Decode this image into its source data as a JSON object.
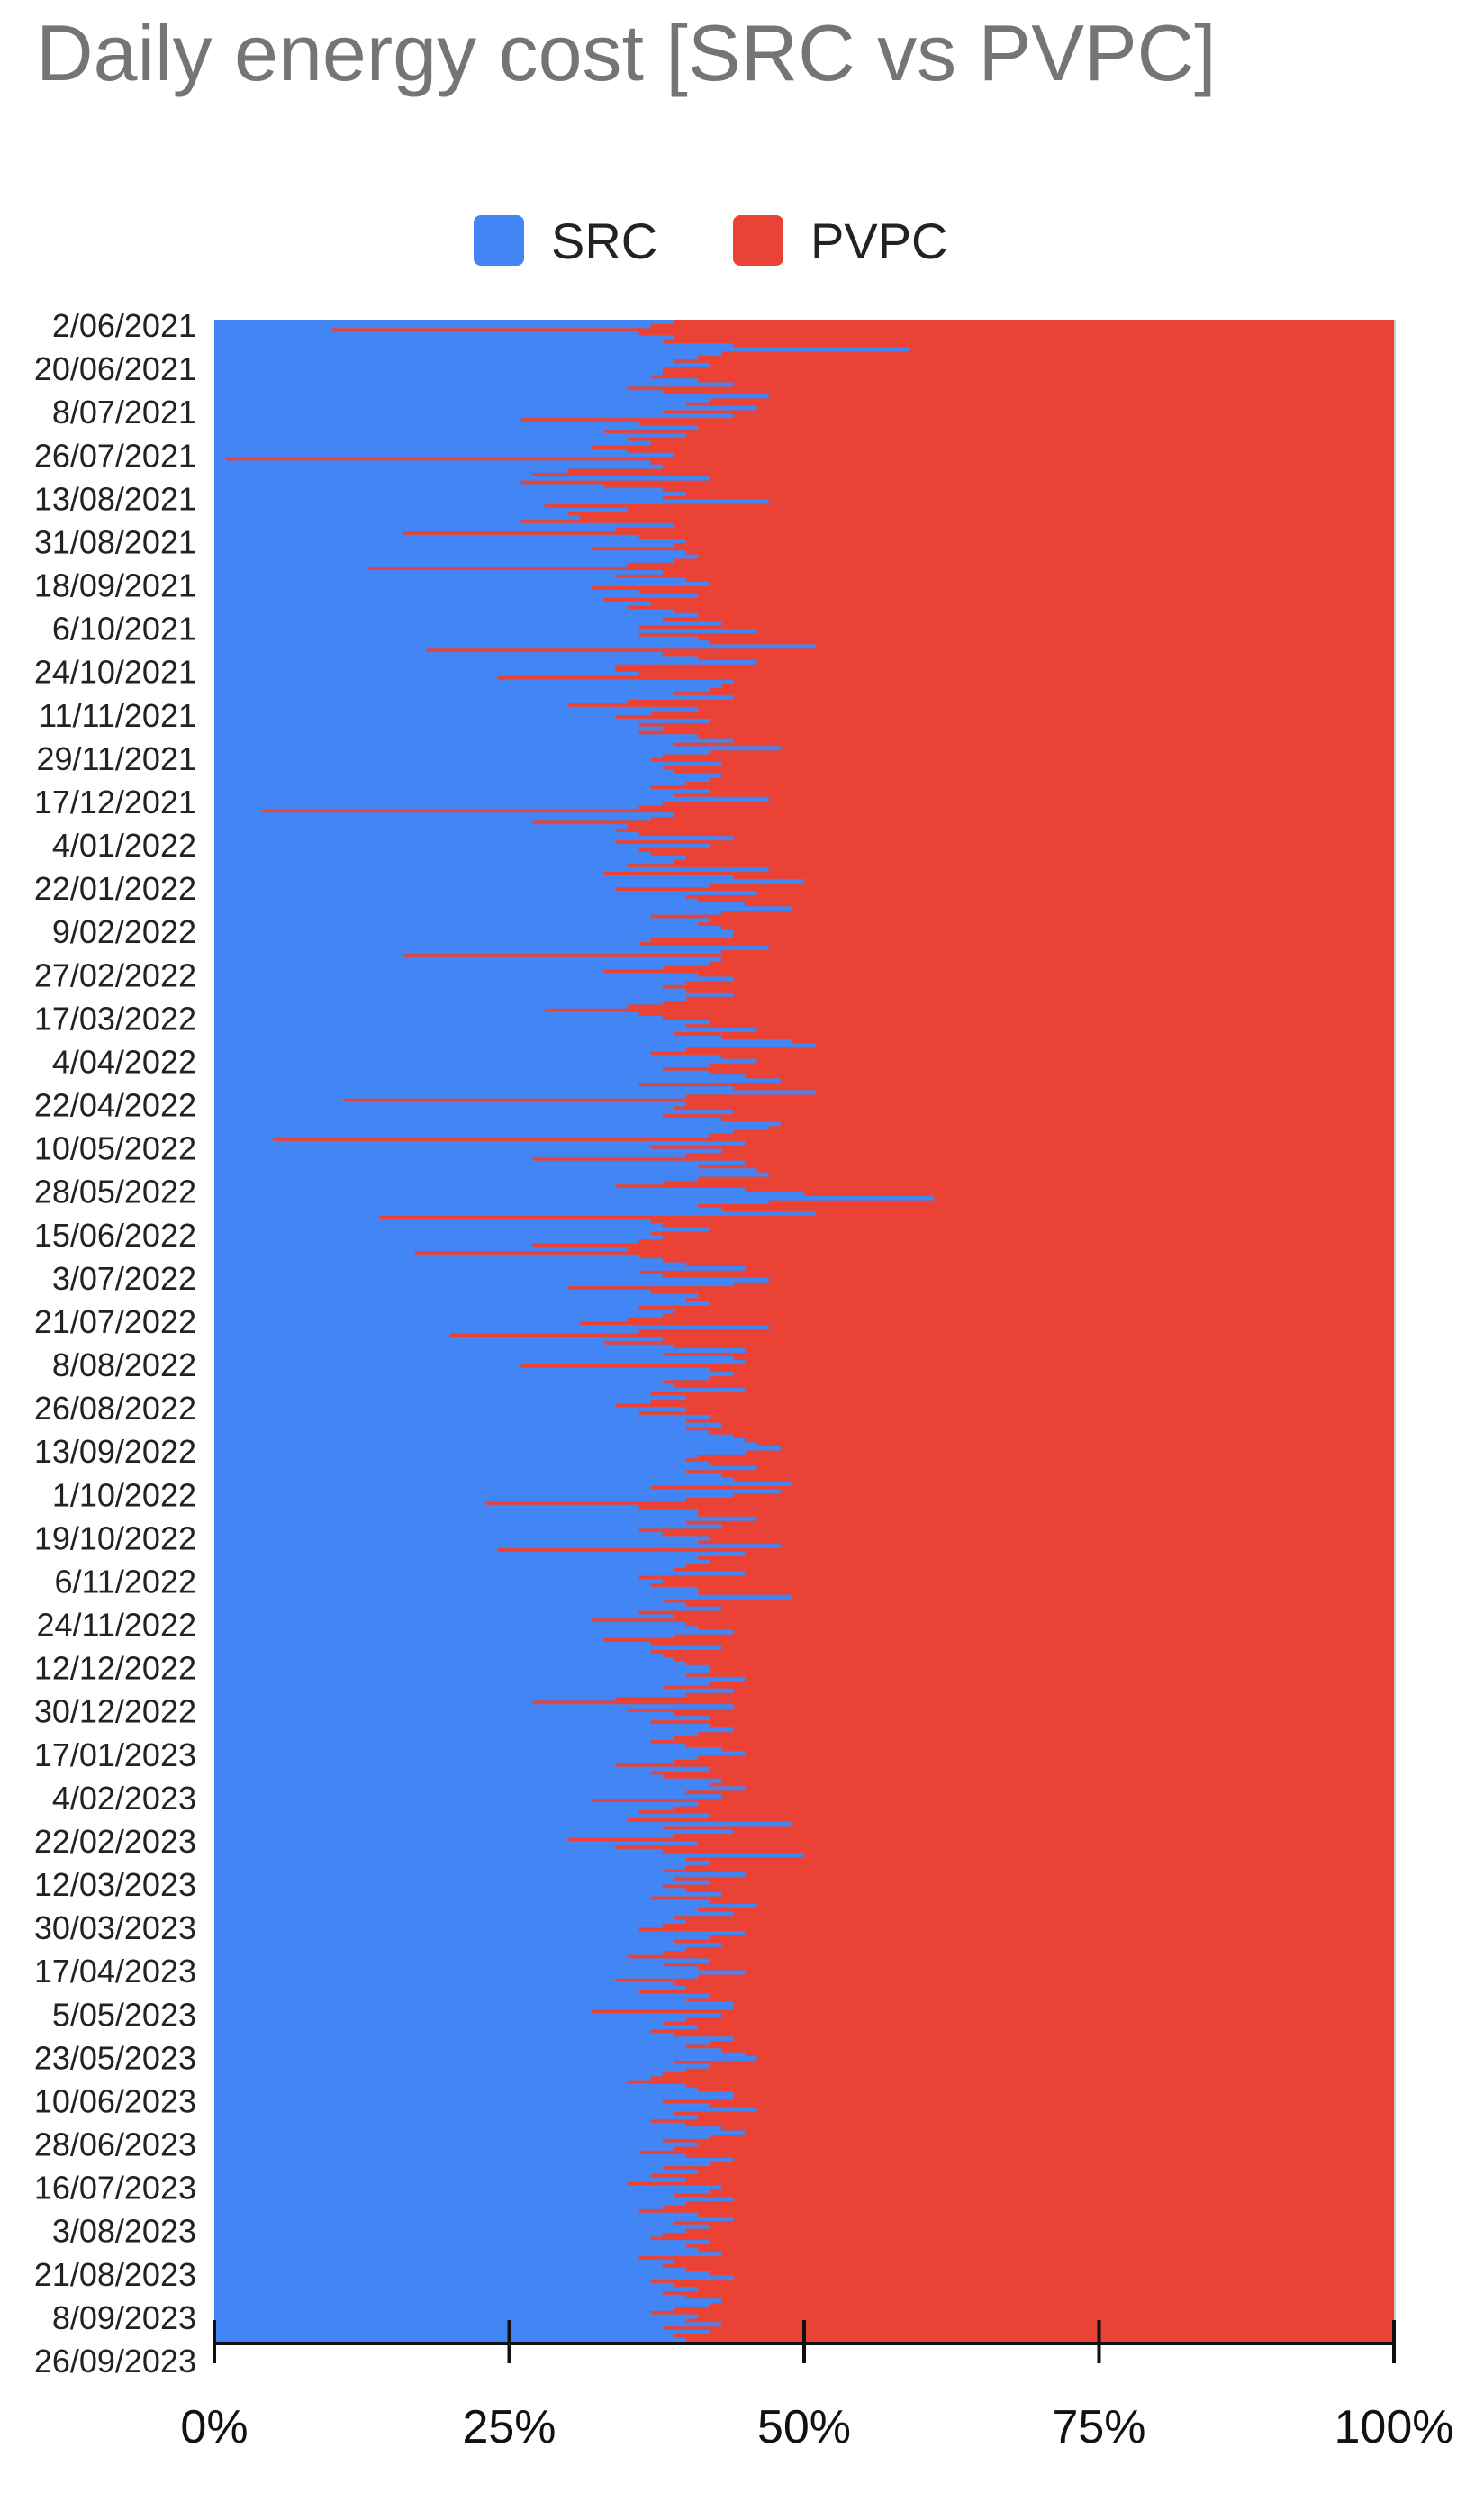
{
  "chart_data": {
    "type": "bar",
    "orientation": "horizontal",
    "stacked": "percent",
    "title": "Daily energy cost [SRC vs PVPC]",
    "legend_position": "top",
    "series": [
      {
        "name": "SRC",
        "color": "#4285f4"
      },
      {
        "name": "PVPC",
        "color": "#ea4335"
      }
    ],
    "x_ticks": [
      "0%",
      "25%",
      "50%",
      "75%",
      "100%"
    ],
    "xlim": [
      0,
      100
    ],
    "grid": false,
    "category_labels": [
      "2/06/2021",
      "20/06/2021",
      "8/07/2021",
      "26/07/2021",
      "13/08/2021",
      "31/08/2021",
      "18/09/2021",
      "6/10/2021",
      "24/10/2021",
      "11/11/2021",
      "29/11/2021",
      "17/12/2021",
      "4/01/2022",
      "22/01/2022",
      "9/02/2022",
      "27/02/2022",
      "17/03/2022",
      "4/04/2022",
      "22/04/2022",
      "10/05/2022",
      "28/05/2022",
      "15/06/2022",
      "3/07/2022",
      "21/07/2022",
      "8/08/2022",
      "26/08/2022",
      "13/09/2022",
      "1/10/2022",
      "19/10/2022",
      "6/11/2022",
      "24/11/2022",
      "12/12/2022",
      "30/12/2022",
      "17/01/2023",
      "4/02/2023",
      "22/02/2023",
      "12/03/2023",
      "30/03/2023",
      "17/04/2023",
      "5/05/2023",
      "23/05/2023",
      "10/06/2023",
      "28/06/2023",
      "16/07/2023",
      "3/08/2023",
      "21/08/2023",
      "8/09/2023",
      "26/09/2023"
    ],
    "src_share_percent_sampled_every_18_days": [
      39,
      38,
      37,
      40,
      40,
      43,
      40,
      41,
      42,
      44,
      45,
      40,
      37,
      42,
      39,
      41,
      44,
      38,
      42,
      45,
      46,
      44,
      41,
      45,
      44,
      43,
      40,
      38,
      40,
      36,
      38,
      42,
      35,
      34,
      36,
      44,
      38,
      35,
      30,
      31,
      35,
      40,
      38,
      39,
      36,
      42,
      40,
      45
    ],
    "src_share_percent_daily": [
      39,
      37,
      10,
      36,
      39,
      38,
      44,
      59,
      43,
      41,
      39,
      42,
      38,
      38,
      37,
      41,
      44,
      35,
      38,
      47,
      42,
      40,
      46,
      38,
      44,
      26,
      36,
      41,
      33,
      40,
      35,
      37,
      32,
      35,
      39,
      1,
      37,
      38,
      30,
      27,
      42,
      26,
      33,
      38,
      40,
      38,
      47,
      28,
      35,
      30,
      31,
      26,
      39,
      34,
      16,
      36,
      40,
      39,
      32,
      40,
      41,
      39,
      35,
      13,
      38,
      34,
      40,
      42,
      32,
      36,
      41,
      33,
      37,
      35,
      39,
      41,
      38,
      43,
      36,
      46,
      36,
      41,
      42,
      51,
      18,
      38,
      41,
      46,
      34,
      34,
      36,
      24,
      44,
      43,
      42,
      39,
      44,
      35,
      30,
      41,
      37,
      34,
      42,
      36,
      38,
      36,
      41,
      44,
      39,
      48,
      42,
      38,
      37,
      43,
      38,
      39,
      43,
      42,
      40,
      37,
      42,
      39,
      47,
      38,
      36,
      4,
      39,
      37,
      27,
      35,
      34,
      36,
      44,
      34,
      42,
      36,
      37,
      40,
      39,
      35,
      47,
      33,
      44,
      50,
      42,
      34,
      46,
      40,
      41,
      45,
      49,
      43,
      37,
      42,
      41,
      43,
      44,
      44,
      37,
      36,
      47,
      43,
      16,
      43,
      42,
      38,
      33,
      41,
      44,
      40,
      38,
      40,
      44,
      40,
      38,
      35,
      28,
      36,
      38,
      42,
      40,
      46,
      39,
      43,
      49,
      51,
      40,
      37,
      43,
      46,
      42,
      38,
      42,
      45,
      48,
      36,
      44,
      51,
      40,
      11,
      40,
      39,
      44,
      38,
      43,
      48,
      47,
      44,
      42,
      5,
      45,
      37,
      43,
      40,
      27,
      45,
      41,
      46,
      47,
      41,
      38,
      34,
      45,
      50,
      61,
      47,
      41,
      43,
      51,
      14,
      37,
      38,
      42,
      37,
      38,
      36,
      27,
      35,
      17,
      36,
      38,
      40,
      45,
      36,
      38,
      47,
      44,
      30,
      37,
      41,
      40,
      42,
      36,
      39,
      38,
      35,
      31,
      47,
      36,
      20,
      38,
      33,
      39,
      45,
      38,
      44,
      45,
      26,
      42,
      44,
      42,
      38,
      39,
      45,
      37,
      40,
      37,
      34,
      40,
      36,
      42,
      40,
      43,
      40,
      42,
      44,
      45,
      46,
      48,
      45,
      41,
      40,
      42,
      46,
      40,
      43,
      44,
      49,
      37,
      48,
      44,
      40,
      23,
      36,
      41,
      41,
      46,
      40,
      43,
      36,
      38,
      42,
      41,
      48,
      24,
      45,
      41,
      42,
      40,
      39,
      45,
      36,
      38,
      37,
      41,
      41,
      49,
      38,
      40,
      43,
      36,
      39,
      32,
      40,
      41,
      44,
      39,
      33,
      37,
      43,
      37,
      38,
      39,
      40,
      42,
      42,
      40,
      45,
      42,
      38,
      44,
      40,
      34,
      27,
      44,
      35,
      39,
      42,
      37,
      42,
      44,
      41,
      39,
      37,
      40,
      43,
      45,
      41,
      39,
      34,
      42,
      37,
      38,
      43,
      42,
      45,
      40,
      43,
      32,
      41,
      39,
      36,
      42,
      35,
      49,
      38,
      44,
      39,
      30,
      41,
      34,
      38,
      50,
      40,
      42,
      40,
      38,
      45,
      39,
      42,
      38,
      40,
      43,
      37,
      42,
      46,
      41,
      44,
      39,
      40,
      38,
      36,
      45,
      42,
      39,
      43,
      40,
      38,
      35,
      42,
      38,
      41,
      45,
      41,
      34,
      39,
      40,
      36,
      42,
      40,
      44,
      44,
      32,
      43,
      40,
      38,
      41,
      37,
      39,
      44,
      42,
      40,
      43,
      45,
      46,
      39,
      42,
      40,
      38,
      37,
      35,
      40,
      41,
      44,
      44,
      38,
      42,
      46,
      39,
      41,
      37,
      40,
      43,
      45,
      42,
      38,
      41,
      39,
      36,
      40,
      44,
      42,
      38,
      41,
      37,
      40,
      35,
      43,
      42,
      39,
      44,
      40,
      38,
      36,
      41,
      44,
      39,
      42,
      40,
      38,
      37,
      42,
      40,
      41,
      43,
      36,
      39,
      38,
      40,
      42,
      44,
      37,
      39,
      41,
      38,
      40,
      43,
      42,
      39,
      37,
      41,
      40,
      43,
      38,
      42,
      39,
      40
    ]
  }
}
